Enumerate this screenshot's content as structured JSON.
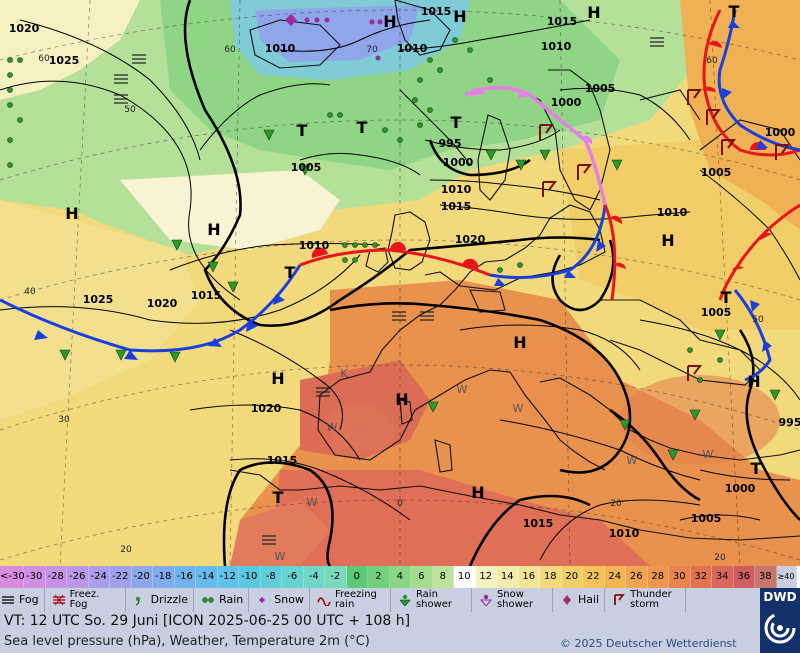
{
  "map": {
    "isobar_labels": [
      {
        "text": "1020"
      },
      {
        "text": "1025"
      },
      {
        "text": "1010"
      },
      {
        "text": "1010"
      },
      {
        "text": "1015"
      },
      {
        "text": "1015"
      },
      {
        "text": "1010"
      },
      {
        "text": "1005"
      },
      {
        "text": "1000"
      },
      {
        "text": "1000"
      },
      {
        "text": "1005"
      },
      {
        "text": "1005"
      },
      {
        "text": "995"
      },
      {
        "text": "1000"
      },
      {
        "text": "1010"
      },
      {
        "text": "1015"
      },
      {
        "text": "1020"
      },
      {
        "text": "1010"
      },
      {
        "text": "1010"
      },
      {
        "text": "1015"
      },
      {
        "text": "1025"
      },
      {
        "text": "1020"
      },
      {
        "text": "1020"
      },
      {
        "text": "1015"
      },
      {
        "text": "1015"
      },
      {
        "text": "1010"
      },
      {
        "text": "1005"
      },
      {
        "text": "1000"
      },
      {
        "text": "995"
      },
      {
        "text": "1005"
      }
    ],
    "pressure_centers": [
      {
        "text": "H"
      },
      {
        "text": "H"
      },
      {
        "text": "T"
      },
      {
        "text": "T"
      },
      {
        "text": "T"
      },
      {
        "text": "H"
      },
      {
        "text": "H"
      },
      {
        "text": "T"
      },
      {
        "text": "H"
      },
      {
        "text": "H"
      },
      {
        "text": "H"
      },
      {
        "text": "H"
      },
      {
        "text": "H"
      },
      {
        "text": "T"
      },
      {
        "text": "T"
      },
      {
        "text": "H"
      },
      {
        "text": "T"
      },
      {
        "text": "H"
      },
      {
        "text": "T"
      }
    ],
    "lat_labels": [
      {
        "text": "60"
      },
      {
        "text": "50"
      },
      {
        "text": "40"
      },
      {
        "text": "30"
      },
      {
        "text": "20"
      },
      {
        "text": "60"
      },
      {
        "text": "70"
      },
      {
        "text": "60"
      },
      {
        "text": "50"
      },
      {
        "text": "20"
      },
      {
        "text": "0"
      },
      {
        "text": "20"
      }
    ],
    "weather_letters": [
      {
        "text": "W"
      },
      {
        "text": "W"
      },
      {
        "text": "W"
      },
      {
        "text": "W"
      },
      {
        "text": "W"
      },
      {
        "text": "W"
      },
      {
        "text": "W"
      },
      {
        "text": "K"
      }
    ]
  },
  "scale": [
    {
      "label": "<-30",
      "color": "#d98be0"
    },
    {
      "label": "-30",
      "color": "#cf8fe3"
    },
    {
      "label": "-28",
      "color": "#c593e6"
    },
    {
      "label": "-26",
      "color": "#b998e8"
    },
    {
      "label": "-24",
      "color": "#ac9ce9"
    },
    {
      "label": "-22",
      "color": "#9fa2ea"
    },
    {
      "label": "-20",
      "color": "#8ea7ea"
    },
    {
      "label": "-18",
      "color": "#7fadeb"
    },
    {
      "label": "-16",
      "color": "#71b4ec"
    },
    {
      "label": "-14",
      "color": "#66bbeb"
    },
    {
      "label": "-12",
      "color": "#5fc2e8"
    },
    {
      "label": "-10",
      "color": "#5bc8e2"
    },
    {
      "label": "-8",
      "color": "#5fcedb"
    },
    {
      "label": "-6",
      "color": "#66d3d1"
    },
    {
      "label": "-4",
      "color": "#70d7c6"
    },
    {
      "label": "-2",
      "color": "#79dab9"
    },
    {
      "label": "0",
      "color": "#5ec878"
    },
    {
      "label": "2",
      "color": "#72cf7c"
    },
    {
      "label": "4",
      "color": "#8ad685"
    },
    {
      "label": "6",
      "color": "#a3dd8f"
    },
    {
      "label": "8",
      "color": "#bde49a"
    },
    {
      "label": "10",
      "color": "#ffffff"
    },
    {
      "label": "12",
      "color": "#f6f3c3"
    },
    {
      "label": "14",
      "color": "#f3ecad"
    },
    {
      "label": "16",
      "color": "#f2e395"
    },
    {
      "label": "18",
      "color": "#f2d97c"
    },
    {
      "label": "20",
      "color": "#f2ce68"
    },
    {
      "label": "22",
      "color": "#f3c35a"
    },
    {
      "label": "24",
      "color": "#f3b552"
    },
    {
      "label": "26",
      "color": "#f2a54e"
    },
    {
      "label": "28",
      "color": "#ee954e"
    },
    {
      "label": "30",
      "color": "#e9844f"
    },
    {
      "label": "32",
      "color": "#e27352"
    },
    {
      "label": "34",
      "color": "#da6559"
    },
    {
      "label": "36",
      "color": "#d05c63"
    },
    {
      "label": "38",
      "color": "#c7766e"
    },
    {
      "label": "≥40 °C",
      "color": "#c8cfe0"
    }
  ],
  "legend": [
    {
      "label": "Fog",
      "icon": "fog-icon"
    },
    {
      "label": "Freez. Fog",
      "icon": "freezing-fog-icon"
    },
    {
      "label": "Drizzle",
      "icon": "drizzle-icon"
    },
    {
      "label": "Rain",
      "icon": "rain-icon"
    },
    {
      "label": "Snow",
      "icon": "snow-icon"
    },
    {
      "label": "Freezing rain",
      "icon": "freezing-rain-icon"
    },
    {
      "label": "Rain shower",
      "icon": "rain-shower-icon"
    },
    {
      "label": "Snow shower",
      "icon": "snow-shower-icon"
    },
    {
      "label": "Hail",
      "icon": "hail-icon"
    },
    {
      "label": "Thunder storm",
      "icon": "thunderstorm-icon"
    }
  ],
  "info": {
    "vt": "VT: 12 UTC So.  29 Juni [ICON 2025-06-25  00 UTC + 108 h]",
    "subtitle": "Sea level pressure (hPa), Weather, Temperature 2m (°C)",
    "copyright": "© 2025 Deutscher Wetterdienst"
  },
  "logo": {
    "text": "DWD"
  },
  "colors": {
    "cold_front": "#1a3fe0",
    "warm_front": "#e8151b",
    "occlusion": "#e77de8",
    "isobar": "#000000"
  }
}
